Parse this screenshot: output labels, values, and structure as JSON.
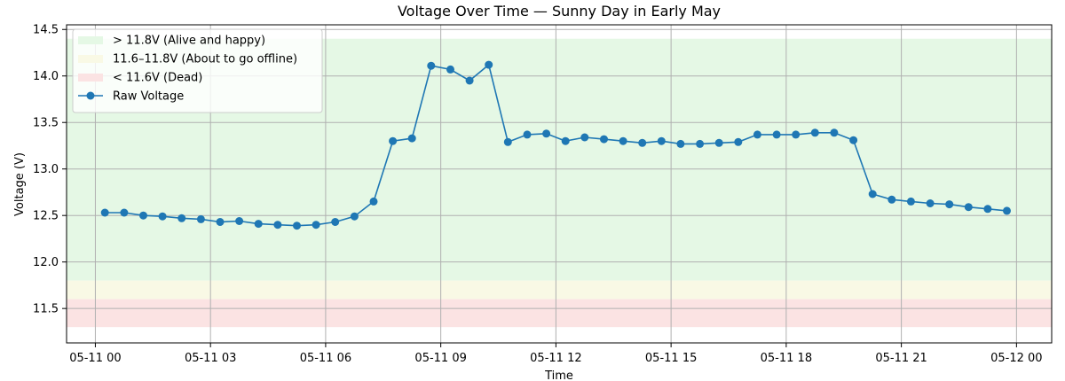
{
  "chart_data": {
    "type": "line",
    "title": "Voltage Over Time — Sunny Day in Early May",
    "xlabel": "Time",
    "ylabel": "Voltage (V)",
    "x_ticks": [
      "05-11 00",
      "05-11 03",
      "05-11 06",
      "05-11 09",
      "05-11 12",
      "05-11 15",
      "05-11 18",
      "05-11 21",
      "05-12 00"
    ],
    "y_ticks": [
      "11.5",
      "12.0",
      "12.5",
      "13.0",
      "13.5",
      "14.0",
      "14.5"
    ],
    "xlim": [
      "2024-05-10 23:15",
      "2024-05-12 00:55"
    ],
    "ylim": [
      11.13,
      14.55
    ],
    "grid": true,
    "legend_position": "top-left",
    "bands": [
      {
        "label": "> 11.8V (Alive and happy)",
        "y_from": 11.8,
        "y_to": 14.4,
        "color": "#e5f8e5"
      },
      {
        "label": "11.6–11.8V (About to go offline)",
        "y_from": 11.6,
        "y_to": 11.8,
        "color": "#f9f9e5"
      },
      {
        "label": "< 11.6V (Dead)",
        "y_from": 11.3,
        "y_to": 11.6,
        "color": "#fbe3e3"
      }
    ],
    "series": [
      {
        "name": "Raw Voltage",
        "color": "#1f77b4",
        "x": [
          "05-11 00:15",
          "05-11 00:45",
          "05-11 01:15",
          "05-11 01:45",
          "05-11 02:15",
          "05-11 02:45",
          "05-11 03:15",
          "05-11 03:45",
          "05-11 04:15",
          "05-11 04:45",
          "05-11 05:15",
          "05-11 05:45",
          "05-11 06:15",
          "05-11 06:45",
          "05-11 07:15",
          "05-11 07:45",
          "05-11 08:15",
          "05-11 08:45",
          "05-11 09:15",
          "05-11 09:45",
          "05-11 10:15",
          "05-11 10:45",
          "05-11 11:15",
          "05-11 11:45",
          "05-11 12:15",
          "05-11 12:45",
          "05-11 13:15",
          "05-11 13:45",
          "05-11 14:15",
          "05-11 14:45",
          "05-11 15:15",
          "05-11 15:45",
          "05-11 16:15",
          "05-11 16:45",
          "05-11 17:15",
          "05-11 17:45",
          "05-11 18:15",
          "05-11 18:45",
          "05-11 19:15",
          "05-11 19:45",
          "05-11 20:15",
          "05-11 20:45",
          "05-11 21:15",
          "05-11 21:45",
          "05-11 22:15",
          "05-11 22:45",
          "05-11 23:15",
          "05-11 23:45"
        ],
        "values": [
          12.53,
          12.53,
          12.5,
          12.49,
          12.47,
          12.46,
          12.43,
          12.44,
          12.41,
          12.4,
          12.39,
          12.4,
          12.43,
          12.49,
          12.65,
          13.3,
          13.33,
          14.11,
          14.07,
          13.95,
          14.12,
          13.29,
          13.37,
          13.38,
          13.3,
          13.34,
          13.32,
          13.3,
          13.28,
          13.3,
          13.27,
          13.27,
          13.28,
          13.29,
          13.37,
          13.37,
          13.37,
          13.39,
          13.39,
          13.31,
          12.73,
          12.67,
          12.65,
          12.63,
          12.62,
          12.59,
          12.57,
          12.55
        ]
      }
    ]
  }
}
